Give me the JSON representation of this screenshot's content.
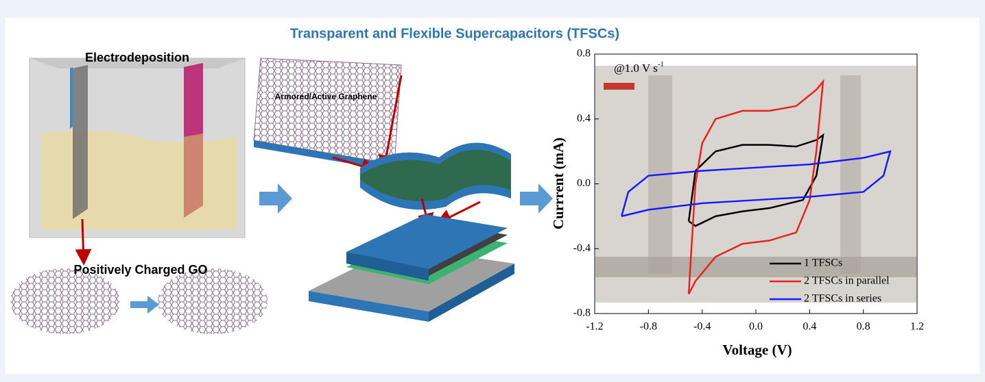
{
  "title": "Transparent and Flexible Supercapacitors (TFSCs)",
  "labels": {
    "electrodeposition": "Electrodeposition",
    "graphene": "Armored/Active Graphene",
    "go": "Positively Charged GO"
  },
  "chart_data": {
    "type": "line",
    "x_label": "Voltage (V)",
    "y_label": "Currrent (mA)",
    "annotation": "@1.0 V s",
    "annotation_superscript": "-1",
    "xlim": [
      -1.2,
      1.2
    ],
    "ylim": [
      -0.8,
      0.8
    ],
    "xticks": [
      -1.2,
      -0.8,
      -0.4,
      {
        "value": 0,
        "label": "0.0"
      },
      0.4,
      0.8,
      1.2
    ],
    "yticks": [
      -0.8,
      -0.4,
      {
        "value": 0,
        "label": "0.0"
      },
      0.4,
      0.8
    ],
    "legend": "lower right",
    "series": [
      {
        "name": "1 TFSCs",
        "color": "#000000",
        "x": [
          -0.5,
          -0.45,
          -0.3,
          -0.1,
          0.1,
          0.3,
          0.45,
          0.5,
          0.45,
          0.35,
          0.1,
          -0.1,
          -0.3,
          -0.45,
          -0.5
        ],
        "values": [
          -0.23,
          0.08,
          0.2,
          0.24,
          0.24,
          0.23,
          0.27,
          0.3,
          0.05,
          -0.1,
          -0.15,
          -0.17,
          -0.2,
          -0.26,
          -0.23
        ]
      },
      {
        "name": "2 TFSCs in parallel",
        "color": "#e8231e",
        "x": [
          -0.5,
          -0.48,
          -0.45,
          -0.4,
          -0.3,
          -0.1,
          0.1,
          0.3,
          0.45,
          0.5,
          0.45,
          0.4,
          0.3,
          0.1,
          -0.1,
          -0.3,
          -0.45,
          -0.5
        ],
        "values": [
          -0.68,
          -0.4,
          0.0,
          0.25,
          0.4,
          0.45,
          0.45,
          0.48,
          0.58,
          0.63,
          0.2,
          -0.1,
          -0.3,
          -0.35,
          -0.37,
          -0.45,
          -0.6,
          -0.68
        ]
      },
      {
        "name": "2 TFSCs in series",
        "color": "#1a1aff",
        "x": [
          -1.0,
          -0.95,
          -0.8,
          -0.4,
          0.0,
          0.4,
          0.8,
          1.0,
          0.95,
          0.8,
          0.4,
          0.0,
          -0.4,
          -0.8,
          -1.0
        ],
        "values": [
          -0.2,
          -0.05,
          0.05,
          0.08,
          0.1,
          0.12,
          0.16,
          0.2,
          0.05,
          -0.05,
          -0.08,
          -0.1,
          -0.12,
          -0.16,
          -0.2
        ]
      }
    ]
  }
}
